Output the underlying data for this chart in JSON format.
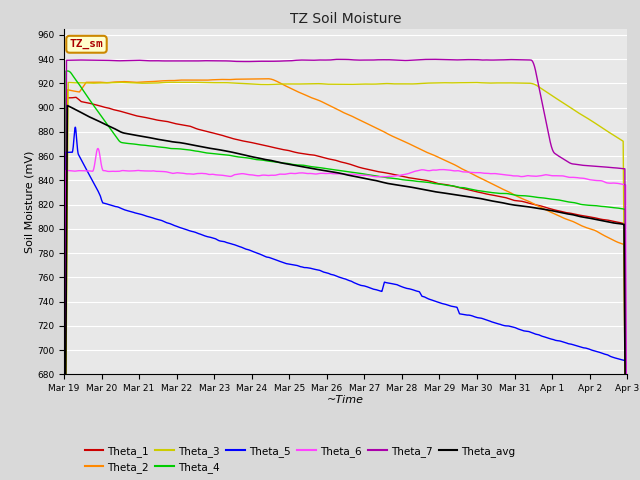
{
  "title": "TZ Soil Moisture",
  "xlabel": "~Time",
  "ylabel": "Soil Moisture (mV)",
  "ylim": [
    680,
    965
  ],
  "yticks": [
    680,
    700,
    720,
    740,
    760,
    780,
    800,
    820,
    840,
    860,
    880,
    900,
    920,
    940,
    960
  ],
  "date_labels": [
    "Mar 19",
    "Mar 20",
    "Mar 21",
    "Mar 22",
    "Mar 23",
    "Mar 24",
    "Mar 25",
    "Mar 26",
    "Mar 27",
    "Mar 28",
    "Mar 29",
    "Mar 30",
    "Mar 31",
    "Apr 1",
    "Apr 2",
    "Apr 3"
  ],
  "n_points": 3360,
  "series": {
    "Theta_1": {
      "color": "#cc0000",
      "linewidth": 1.0
    },
    "Theta_2": {
      "color": "#ff8800",
      "linewidth": 1.0
    },
    "Theta_3": {
      "color": "#cccc00",
      "linewidth": 1.0
    },
    "Theta_4": {
      "color": "#00cc00",
      "linewidth": 1.0
    },
    "Theta_5": {
      "color": "#0000ff",
      "linewidth": 1.0
    },
    "Theta_6": {
      "color": "#ff44ff",
      "linewidth": 1.0
    },
    "Theta_7": {
      "color": "#aa00aa",
      "linewidth": 1.0
    },
    "Theta_avg": {
      "color": "#000000",
      "linewidth": 1.2
    }
  },
  "legend_box_color": "#ffffcc",
  "legend_box_edge": "#cc8800",
  "legend_box_text": "#aa0000",
  "legend_box_label": "TZ_sm",
  "fig_facecolor": "#d9d9d9",
  "plot_facecolor": "#e8e8e8"
}
